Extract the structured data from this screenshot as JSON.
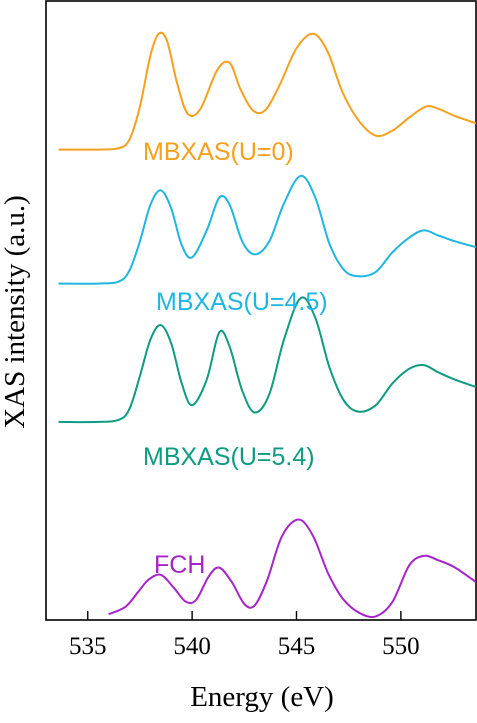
{
  "chart_data": {
    "type": "line",
    "title": "",
    "xlabel": "Energy (eV)",
    "ylabel": "XAS intensity (a.u.)",
    "xlim": [
      533,
      553.6
    ],
    "ylim": [
      0,
      8.5
    ],
    "xticks": [
      535,
      540,
      545,
      550
    ],
    "yticks": [],
    "grid": false,
    "legend": "none",
    "series": [
      {
        "name": "MBXAS(U=0)",
        "color": "#F5A01E",
        "x": [
          533.6,
          535.5,
          536.5,
          537.0,
          537.5,
          538.0,
          538.4,
          538.8,
          539.3,
          539.8,
          540.4,
          541.2,
          541.8,
          542.3,
          542.9,
          543.5,
          544.2,
          545.0,
          545.8,
          546.5,
          547.2,
          548.0,
          548.8,
          549.6,
          550.4,
          551.2,
          551.8,
          552.6,
          553.6
        ],
        "values": [
          6.46,
          6.46,
          6.48,
          6.6,
          7.05,
          7.75,
          8.05,
          7.95,
          7.35,
          6.95,
          7.02,
          7.55,
          7.65,
          7.3,
          7.0,
          7.0,
          7.35,
          7.85,
          8.05,
          7.8,
          7.25,
          6.85,
          6.65,
          6.72,
          6.9,
          7.05,
          7.02,
          6.92,
          6.82
        ]
      },
      {
        "name": "MBXAS(U=4.5)",
        "color": "#1FB6E3",
        "x": [
          533.6,
          535.5,
          536.5,
          537.0,
          537.5,
          538.0,
          538.5,
          539.0,
          539.5,
          540.0,
          540.7,
          541.3,
          541.8,
          542.4,
          543.0,
          543.7,
          544.4,
          545.2,
          545.9,
          546.6,
          547.3,
          548.0,
          548.8,
          549.6,
          550.4,
          551.1,
          551.8,
          552.6,
          553.6
        ],
        "values": [
          4.62,
          4.62,
          4.65,
          4.8,
          5.2,
          5.7,
          5.9,
          5.65,
          5.15,
          4.98,
          5.35,
          5.8,
          5.7,
          5.2,
          5.02,
          5.2,
          5.72,
          6.1,
          5.8,
          5.15,
          4.8,
          4.72,
          4.78,
          5.05,
          5.25,
          5.35,
          5.28,
          5.2,
          5.12
        ]
      },
      {
        "name": "MBXAS(U=5.4)",
        "color": "#0D9B82",
        "x": [
          533.6,
          535.5,
          536.5,
          537.0,
          537.5,
          538.0,
          538.5,
          539.0,
          539.5,
          540.0,
          540.7,
          541.3,
          541.8,
          542.4,
          543.0,
          543.7,
          544.4,
          545.2,
          545.9,
          546.6,
          547.3,
          548.0,
          548.8,
          549.6,
          550.4,
          551.1,
          551.8,
          552.6,
          553.6
        ],
        "values": [
          2.72,
          2.72,
          2.75,
          2.9,
          3.35,
          3.85,
          4.05,
          3.8,
          3.25,
          2.95,
          3.3,
          3.95,
          3.75,
          3.15,
          2.85,
          3.1,
          3.85,
          4.42,
          4.15,
          3.45,
          3.0,
          2.86,
          2.95,
          3.25,
          3.45,
          3.5,
          3.4,
          3.3,
          3.2
        ]
      },
      {
        "name": "FCH",
        "color": "#A624C9",
        "x": [
          536.0,
          536.8,
          537.4,
          537.9,
          538.5,
          539.1,
          539.7,
          540.2,
          540.8,
          541.3,
          541.9,
          542.5,
          543.0,
          543.6,
          544.3,
          545.1,
          545.8,
          546.5,
          547.2,
          548.0,
          548.8,
          549.6,
          550.4,
          551.1,
          551.8,
          552.6,
          553.6
        ],
        "values": [
          0.08,
          0.18,
          0.38,
          0.55,
          0.62,
          0.45,
          0.25,
          0.28,
          0.6,
          0.72,
          0.52,
          0.22,
          0.2,
          0.55,
          1.15,
          1.38,
          1.15,
          0.65,
          0.3,
          0.1,
          0.05,
          0.25,
          0.75,
          0.88,
          0.82,
          0.72,
          0.52
        ]
      }
    ]
  }
}
